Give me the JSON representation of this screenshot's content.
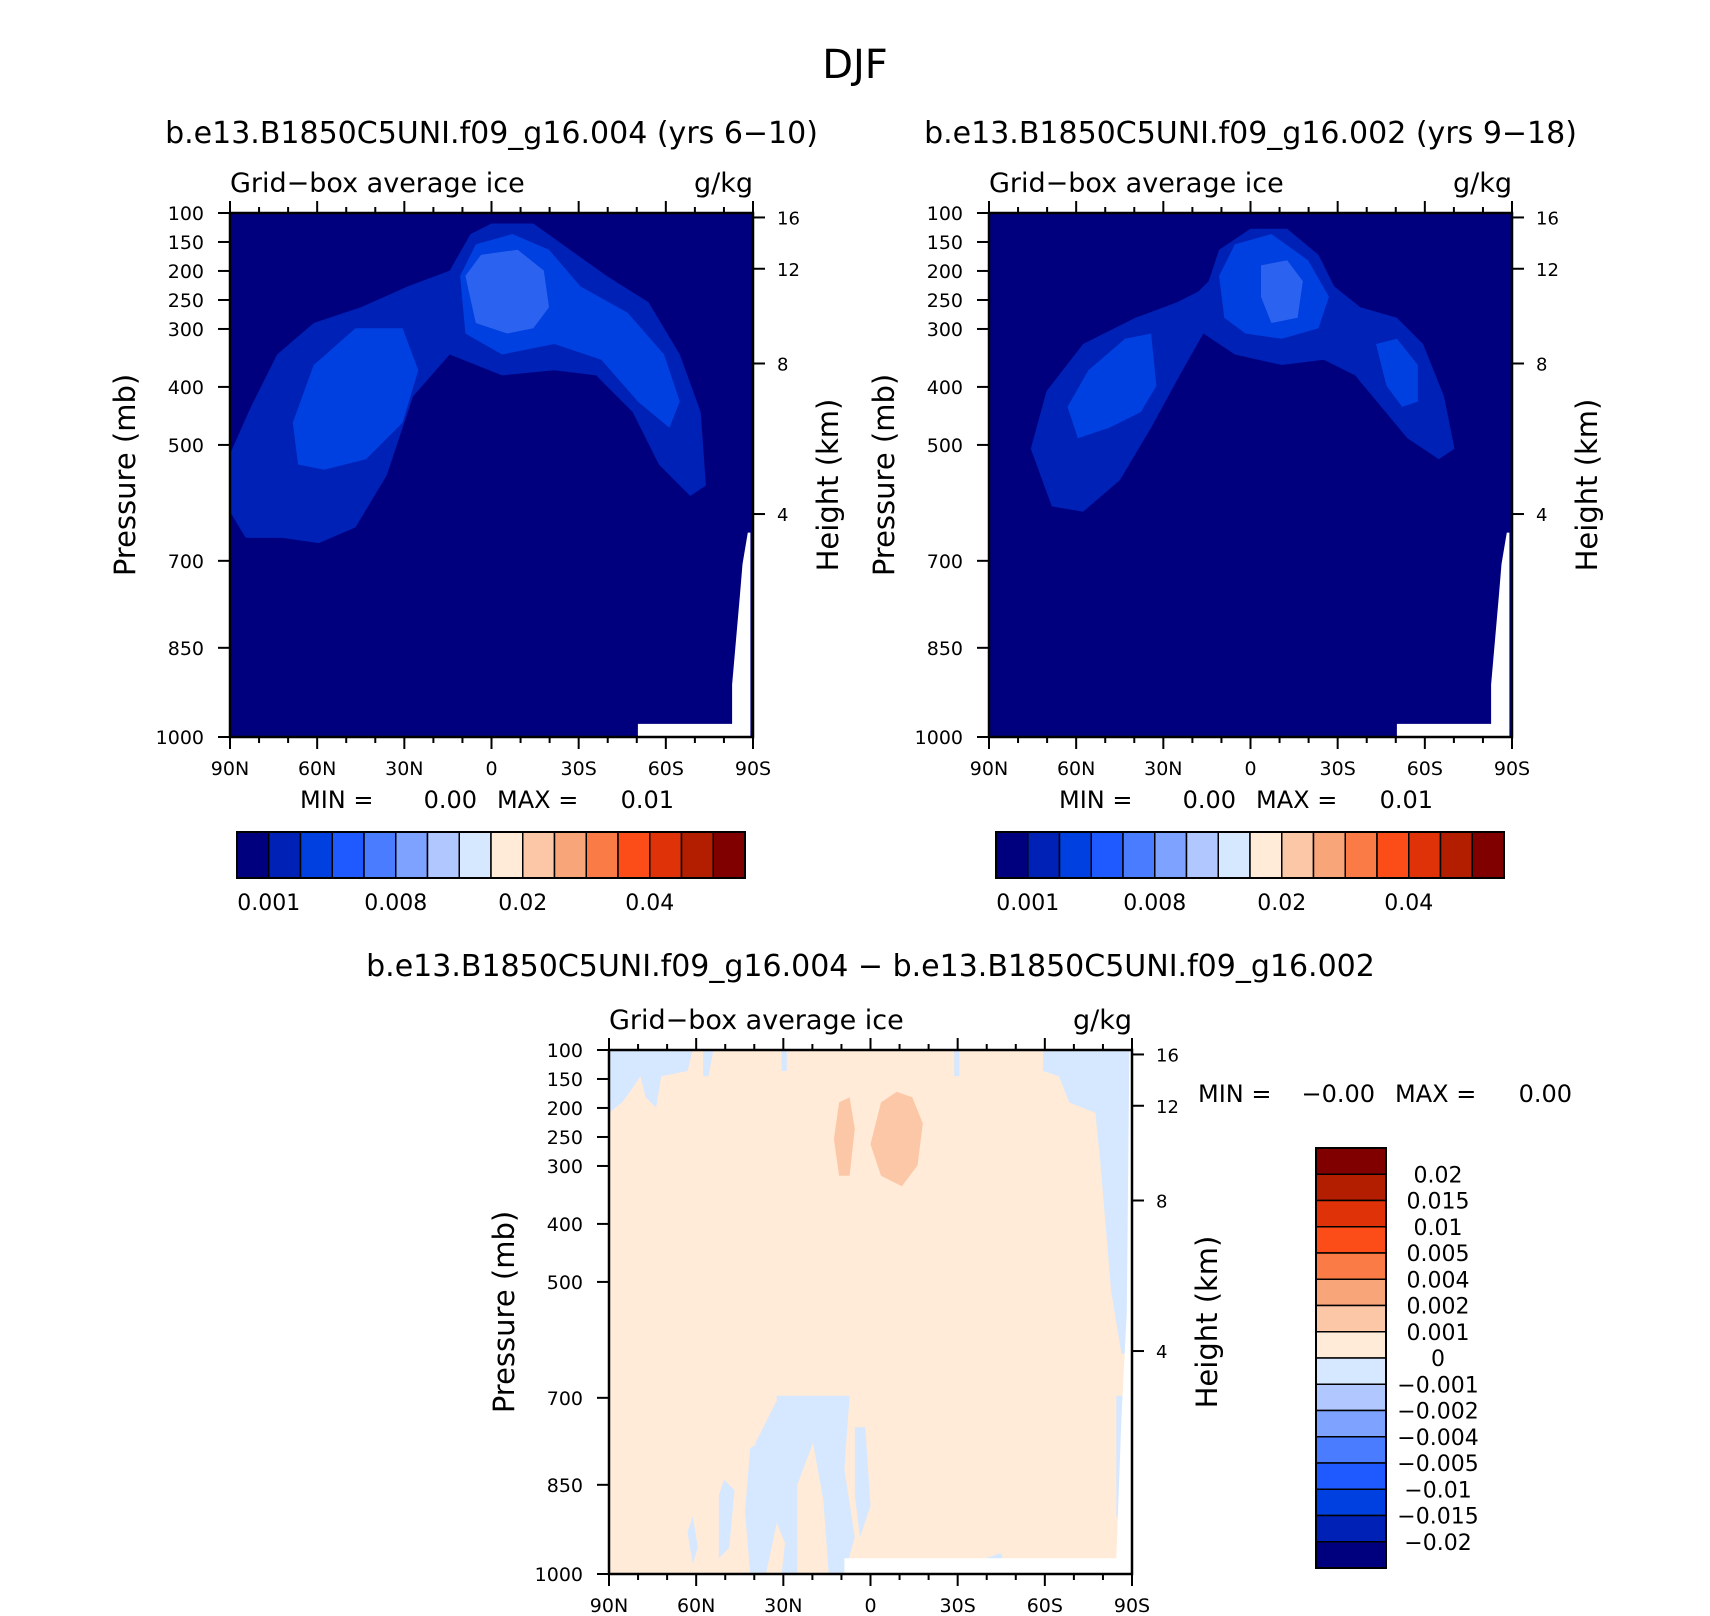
{
  "page": {
    "title": "DJF"
  },
  "colors": {
    "abs_fill": [
      "#00007f",
      "#0021b5",
      "#0040e0",
      "#1e5aff",
      "#4a7cff",
      "#7ea2ff",
      "#b0c8ff",
      "#d6e8ff",
      "#ffebd8",
      "#fcc7a6",
      "#f9a57a",
      "#fa7b45",
      "#fc4d18",
      "#e03208",
      "#b31d00",
      "#800000"
    ],
    "diff_fill": [
      "#00007f",
      "#0021b5",
      "#0040e0",
      "#1e5aff",
      "#4a7cff",
      "#7ea2ff",
      "#b0c8ff",
      "#d6e8ff",
      "#ffebd8",
      "#fcc7a6",
      "#f9a57a",
      "#fa7b45",
      "#fc4d18",
      "#e03208",
      "#b31d00",
      "#800000"
    ],
    "background_abs": "#00007f",
    "level2": "#0021b5",
    "level3": "#0040e0",
    "level4": "#2b63f0",
    "diff_background": "#ffebd8",
    "diff_negative": "#d6e8ff",
    "diff_positive": "#fcc7a6"
  },
  "chart_data": [
    {
      "type": "heatmap",
      "title": "b.e13.B1850C5UNI.f09_g16.004 (yrs 6-10)",
      "variable": "Grid-box average ice",
      "units": "g/kg",
      "ylabel": "Pressure (mb)",
      "ylabel_right": "Height (km)",
      "yticks": [
        "100",
        "150",
        "200",
        "250",
        "300",
        "400",
        "500",
        "700",
        "850",
        "1000"
      ],
      "yticks_right": [
        "16",
        "12",
        "8",
        "4"
      ],
      "xticks": [
        "90N",
        "60N",
        "30N",
        "0",
        "30S",
        "60S",
        "90S"
      ],
      "min_label": "MIN =",
      "min_value": "0.00",
      "max_label": "MAX =",
      "max_value": "0.01",
      "colorbar_labels": [
        "0.001",
        "0.008",
        "0.02",
        "0.04"
      ]
    },
    {
      "type": "heatmap",
      "title": "b.e13.B1850C5UNI.f09_g16.002 (yrs 9-18)",
      "variable": "Grid-box average ice",
      "units": "g/kg",
      "ylabel": "Pressure (mb)",
      "ylabel_right": "Height (km)",
      "yticks": [
        "100",
        "150",
        "200",
        "250",
        "300",
        "400",
        "500",
        "700",
        "850",
        "1000"
      ],
      "yticks_right": [
        "16",
        "12",
        "8",
        "4"
      ],
      "xticks": [
        "90N",
        "60N",
        "30N",
        "0",
        "30S",
        "60S",
        "90S"
      ],
      "min_label": "MIN =",
      "min_value": "0.00",
      "max_label": "MAX =",
      "max_value": "0.01",
      "colorbar_labels": [
        "0.001",
        "0.008",
        "0.02",
        "0.04"
      ]
    },
    {
      "type": "heatmap",
      "title": "b.e13.B1850C5UNI.f09_g16.004 - b.e13.B1850C5UNI.f09_g16.002",
      "variable": "Grid-box average ice",
      "units": "g/kg",
      "ylabel": "Pressure (mb)",
      "ylabel_right": "Height (km)",
      "yticks": [
        "100",
        "150",
        "200",
        "250",
        "300",
        "400",
        "500",
        "700",
        "850",
        "1000"
      ],
      "yticks_right": [
        "16",
        "12",
        "8",
        "4"
      ],
      "xticks": [
        "90N",
        "60N",
        "30N",
        "0",
        "30S",
        "60S",
        "90S"
      ],
      "min_label": "MIN =",
      "min_value": "-0.00",
      "max_label": "MAX =",
      "max_value": "0.00",
      "colorbar_labels": [
        "0.02",
        "0.015",
        "0.01",
        "0.005",
        "0.004",
        "0.002",
        "0.001",
        "0",
        "-0.001",
        "-0.002",
        "-0.004",
        "-0.005",
        "-0.01",
        "-0.015",
        "-0.02"
      ]
    }
  ]
}
